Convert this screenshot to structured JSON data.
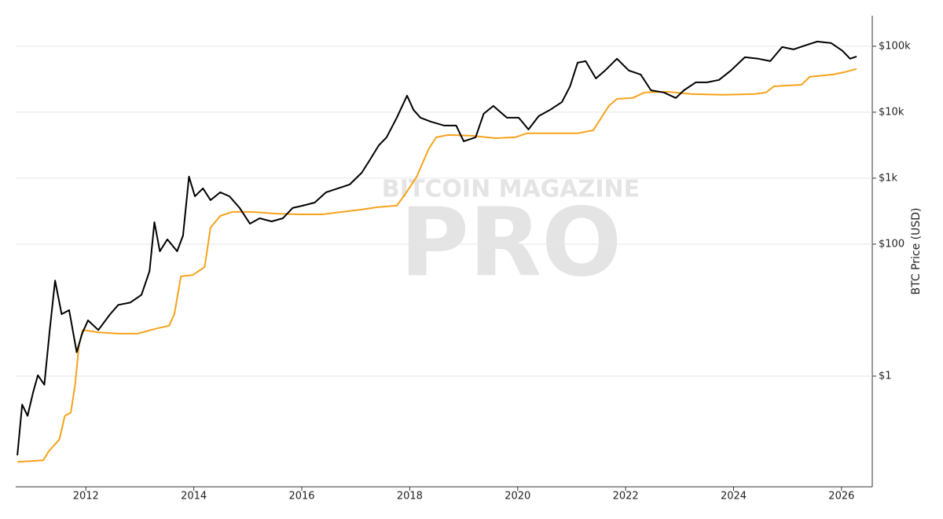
{
  "chart_data": {
    "type": "line",
    "y_label": "BTC Price (USD)",
    "watermark": [
      "BITCOIN MAGAZINE",
      "PRO"
    ],
    "log_y": true,
    "grid": true,
    "xlim": [
      2010.7,
      2026.57
    ],
    "xticks": [
      2012,
      2014,
      2016,
      2018,
      2020,
      2022,
      2024,
      2026
    ],
    "ylim": [
      0.021,
      290000
    ],
    "yticks": [
      {
        "value": 1,
        "label": "$1"
      },
      {
        "value": 100,
        "label": "$100"
      },
      {
        "value": 1000,
        "label": "$1k"
      },
      {
        "value": 10000,
        "label": "$10k"
      },
      {
        "value": 100000,
        "label": "$100k"
      }
    ],
    "series": [
      {
        "color": "#000000",
        "x": [
          2010.73,
          2010.82,
          2010.92,
          2011.02,
          2011.11,
          2011.23,
          2011.33,
          2011.43,
          2011.55,
          2011.69,
          2011.83,
          2011.93,
          2012.04,
          2012.23,
          2012.45,
          2012.6,
          2012.82,
          2013.03,
          2013.18,
          2013.27,
          2013.37,
          2013.51,
          2013.69,
          2013.8,
          2013.91,
          2014.02,
          2014.17,
          2014.31,
          2014.49,
          2014.66,
          2014.85,
          2015.04,
          2015.22,
          2015.44,
          2015.65,
          2015.83,
          2016.02,
          2016.24,
          2016.45,
          2016.67,
          2016.89,
          2017.11,
          2017.25,
          2017.43,
          2017.57,
          2017.76,
          2017.95,
          2018.07,
          2018.2,
          2018.39,
          2018.64,
          2018.86,
          2019.0,
          2019.22,
          2019.37,
          2019.55,
          2019.8,
          2020.02,
          2020.2,
          2020.39,
          2020.6,
          2020.82,
          2020.97,
          2021.11,
          2021.26,
          2021.45,
          2021.62,
          2021.84,
          2022.06,
          2022.28,
          2022.47,
          2022.71,
          2022.93,
          2023.08,
          2023.3,
          2023.51,
          2023.73,
          2023.95,
          2024.21,
          2024.46,
          2024.68,
          2024.9,
          2025.11,
          2025.33,
          2025.55,
          2025.81,
          2026.02,
          2026.16,
          2026.28
        ],
        "values": [
          0.063,
          0.37,
          0.25,
          0.56,
          1.03,
          0.74,
          5.0,
          28,
          8.7,
          10,
          2.3,
          4.4,
          7,
          5.0,
          8.7,
          12,
          13,
          17,
          39,
          215,
          78,
          118,
          78,
          135,
          1057,
          532,
          700,
          465,
          611,
          532,
          353,
          204,
          247,
          221,
          247,
          353,
          383,
          427,
          611,
          700,
          803,
          1210,
          1828,
          3162,
          4160,
          8260,
          17800,
          10860,
          8260,
          7190,
          6280,
          6280,
          3630,
          4160,
          9460,
          12450,
          8260,
          8260,
          5470,
          8710,
          10860,
          14290,
          24700,
          56200,
          59400,
          32500,
          42800,
          64600,
          42800,
          37200,
          21500,
          19900,
          16400,
          21500,
          28300,
          28300,
          30800,
          42800,
          68100,
          64600,
          59400,
          97300,
          89600,
          102800,
          117800,
          111600,
          84900,
          64600,
          70000
        ]
      },
      {
        "color": "#f7a21b",
        "x": [
          2010.73,
          2011.21,
          2011.31,
          2011.51,
          2011.61,
          2011.72,
          2011.8,
          2011.87,
          2011.94,
          2012.23,
          2012.6,
          2012.96,
          2013.32,
          2013.54,
          2013.64,
          2013.76,
          2013.98,
          2014.2,
          2014.31,
          2014.49,
          2014.71,
          2015.07,
          2015.51,
          2015.95,
          2016.38,
          2016.75,
          2017.11,
          2017.4,
          2017.76,
          2017.91,
          2018.13,
          2018.35,
          2018.49,
          2018.71,
          2019.15,
          2019.59,
          2019.95,
          2020.17,
          2020.6,
          2021.11,
          2021.4,
          2021.55,
          2021.69,
          2021.84,
          2022.13,
          2022.35,
          2022.78,
          2023.22,
          2023.8,
          2024.39,
          2024.6,
          2024.75,
          2025.26,
          2025.41,
          2025.84,
          2026.06,
          2026.28
        ],
        "values": [
          0.05,
          0.053,
          0.072,
          0.11,
          0.25,
          0.28,
          0.74,
          2.9,
          5.0,
          4.6,
          4.4,
          4.4,
          5.3,
          5.8,
          8.7,
          32.5,
          34,
          45,
          178,
          268,
          308,
          308,
          291,
          283,
          283,
          308,
          334,
          363,
          383,
          562,
          1057,
          2750,
          4160,
          4520,
          4390,
          4040,
          4160,
          4780,
          4780,
          4780,
          5320,
          8260,
          12450,
          15900,
          16400,
          19900,
          20400,
          18800,
          18300,
          18800,
          19900,
          24700,
          26100,
          34300,
          37200,
          40500,
          45200
        ]
      }
    ]
  }
}
